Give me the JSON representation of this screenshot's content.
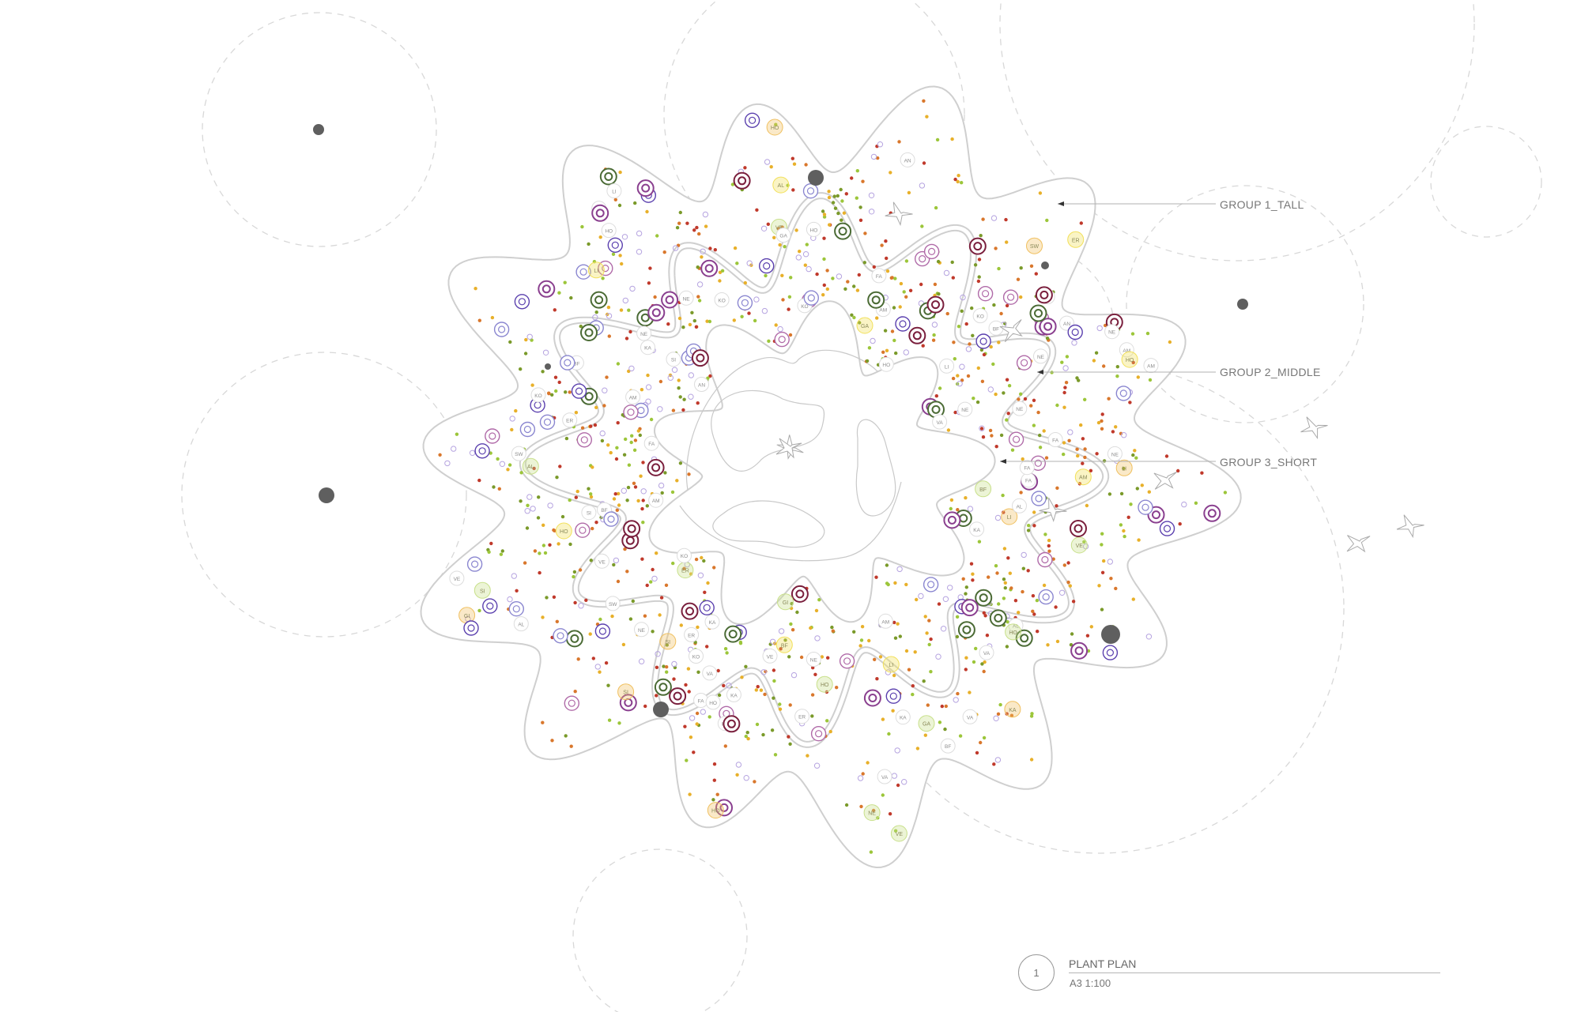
{
  "callouts": {
    "group1": "GROUP 1_TALL",
    "group2": "GROUP 2_MIDDLE",
    "group3": "GROUP 3_SHORT"
  },
  "title_block": {
    "number": "1",
    "title": "PLANT PLAN",
    "scale": "A3 1:100"
  },
  "plant_codes": [
    "KA",
    "FA",
    "SI",
    "AL",
    "LI",
    "GA",
    "BF",
    "HO",
    "AM",
    "VA",
    "AN",
    "VE",
    "SW",
    "GI",
    "NE",
    "ER",
    "KO"
  ],
  "colors": {
    "outline": "#cfcfcf",
    "guide_circle": "#d8d8d8",
    "tree_dot": "#5f5f5f",
    "callout_line": "#b0b0b0",
    "text": "#777777",
    "group1_ring": [
      "#7a1f3d",
      "#4b6b35",
      "#8a3f8f"
    ],
    "group2_ring": [
      "#5a3fae",
      "#8a86d0",
      "#b06aa8"
    ],
    "group3_ring": [
      "#f2e05a",
      "#c8e08a",
      "#f0c060"
    ],
    "seed_dots": [
      "#e8b02a",
      "#9cc63a",
      "#c0392b",
      "#d9772c",
      "#7a9a2a"
    ],
    "small_ring": "#b6a4e0"
  }
}
